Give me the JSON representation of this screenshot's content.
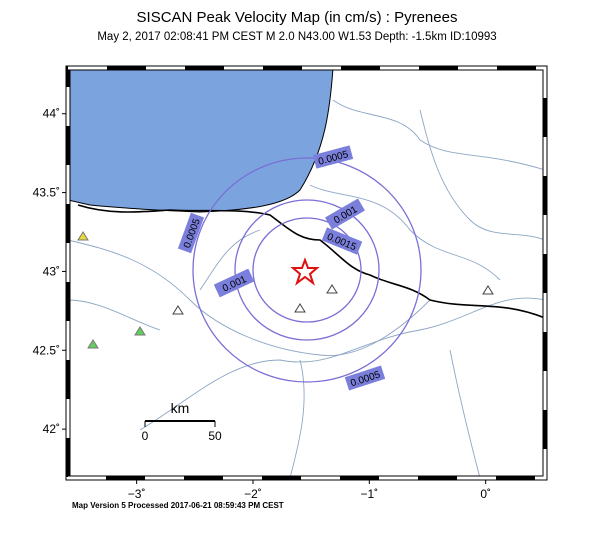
{
  "header": {
    "title": "SISCAN Peak Velocity Map (in cm/s) : Pyrenees",
    "subtitle": "May  2, 2017 02:08:41 PM CEST   M 2.0   N43.00 W1.53   Depth: -1.5km   ID:10993"
  },
  "map": {
    "xlim": [
      -3.59,
      0.51
    ],
    "ylim": [
      41.69,
      44.29
    ],
    "lat_ticks": [
      {
        "value": 44,
        "label": "44˚"
      },
      {
        "value": 43.5,
        "label": "43.5˚"
      },
      {
        "value": 43,
        "label": "43˚"
      },
      {
        "value": 42.5,
        "label": "42.5˚"
      },
      {
        "value": 42,
        "label": "42˚"
      }
    ],
    "lon_ticks": [
      {
        "value": -3,
        "label": "−3˚"
      },
      {
        "value": -2,
        "label": "−2˚"
      },
      {
        "value": -1,
        "label": "−1˚"
      },
      {
        "value": 0,
        "label": "0˚"
      }
    ],
    "contour_labels": [
      0.0005,
      0.0005,
      0.0005,
      0.001,
      0.001,
      0.0015
    ],
    "scale_bar": {
      "unit": "km",
      "ticks": [
        0,
        50
      ]
    }
  },
  "footer": "Map Version 5 Processed 2017-06-21 08:59:43 PM CEST"
}
